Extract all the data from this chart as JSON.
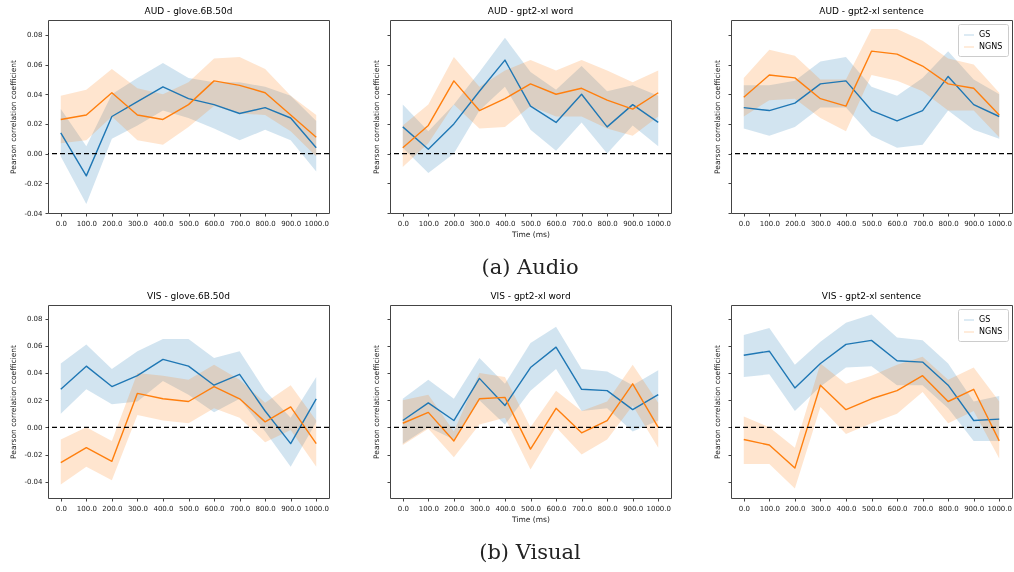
{
  "chart_data": [
    {
      "type": "line",
      "title": "AUD - glove.6B.50d",
      "ylabel": "Pearson correlation coefficient",
      "x": [
        0,
        100,
        200,
        300,
        400,
        500,
        600,
        700,
        800,
        900,
        1000
      ],
      "xlim": [
        -50,
        1050
      ],
      "xticks": [
        {
          "value": 0,
          "label": "0.0"
        },
        {
          "value": 100,
          "label": "100.0"
        },
        {
          "value": 200,
          "label": "200.0"
        },
        {
          "value": 300,
          "label": "300.0"
        },
        {
          "value": 400,
          "label": "400.0"
        },
        {
          "value": 500,
          "label": "500.0"
        },
        {
          "value": 600,
          "label": "600.0"
        },
        {
          "value": 700,
          "label": "700.0"
        },
        {
          "value": 800,
          "label": "800.0"
        },
        {
          "value": 900,
          "label": "900.0"
        },
        {
          "value": 1000,
          "label": "1000.0"
        }
      ],
      "ylim": [
        -0.04,
        0.09
      ],
      "yticks": [
        -0.04,
        -0.02,
        {
          "value": 0,
          "label": "0.00"
        },
        0.02,
        0.04,
        0.06,
        0.08
      ],
      "grid": false,
      "legend": false,
      "ref_lines": [
        {
          "axis": "y",
          "value": 0,
          "color": "#000000",
          "line_style": "dashed"
        }
      ],
      "series": [
        {
          "color": "#1f77b4",
          "values": [
            0.014,
            -0.015,
            0.025,
            0.035,
            0.045,
            0.037,
            0.033,
            0.027,
            0.031,
            0.024,
            0.004
          ],
          "lower": [
            -0.002,
            -0.034,
            0.01,
            0.019,
            0.029,
            0.024,
            0.017,
            0.009,
            0.016,
            0.009,
            -0.012
          ],
          "upper": [
            0.03,
            0.005,
            0.04,
            0.051,
            0.061,
            0.051,
            0.048,
            0.048,
            0.045,
            0.039,
            0.022
          ]
        },
        {
          "color": "#ff7f0e",
          "values": [
            0.023,
            0.026,
            0.041,
            0.026,
            0.023,
            0.033,
            0.049,
            0.046,
            0.041,
            0.026,
            0.011
          ],
          "lower": [
            0.007,
            0.009,
            0.025,
            0.009,
            0.006,
            0.018,
            0.032,
            0.027,
            0.026,
            0.015,
            -0.002
          ],
          "upper": [
            0.039,
            0.043,
            0.057,
            0.044,
            0.04,
            0.048,
            0.064,
            0.065,
            0.057,
            0.039,
            0.026
          ]
        }
      ]
    },
    {
      "type": "line",
      "title": "AUD - gpt2-xl word",
      "xlabel": "Time (ms)",
      "ylabel": "Pearson correlation coefficient",
      "annotations": [
        "(a) Audio"
      ],
      "tick_labels": "x",
      "x": [
        0,
        100,
        200,
        300,
        400,
        500,
        600,
        700,
        800,
        900,
        1000
      ],
      "xlim": [
        -50,
        1050
      ],
      "xticks": [
        {
          "value": 0,
          "label": "0.0"
        },
        {
          "value": 100,
          "label": "100.0"
        },
        {
          "value": 200,
          "label": "200.0"
        },
        {
          "value": 300,
          "label": "300.0"
        },
        {
          "value": 400,
          "label": "400.0"
        },
        {
          "value": 500,
          "label": "500.0"
        },
        {
          "value": 600,
          "label": "600.0"
        },
        {
          "value": 700,
          "label": "700.0"
        },
        {
          "value": 800,
          "label": "800.0"
        },
        {
          "value": 900,
          "label": "900.0"
        },
        {
          "value": 1000,
          "label": "1000.0"
        }
      ],
      "ylim": [
        -0.04,
        0.09
      ],
      "yticks": [
        -0.04,
        -0.02,
        0,
        0.02,
        0.04,
        0.06,
        0.08
      ],
      "grid": false,
      "legend": false,
      "ref_lines": [
        {
          "axis": "y",
          "value": 0,
          "color": "#000000",
          "line_style": "dashed"
        }
      ],
      "series": [
        {
          "color": "#1f77b4",
          "values": [
            0.018,
            0.003,
            0.02,
            0.042,
            0.063,
            0.032,
            0.021,
            0.04,
            0.018,
            0.033,
            0.021
          ],
          "lower": [
            0.004,
            -0.013,
            0.0,
            0.029,
            0.045,
            0.016,
            0.002,
            0.021,
            0.0,
            0.019,
            0.005
          ],
          "upper": [
            0.033,
            0.015,
            0.033,
            0.055,
            0.078,
            0.055,
            0.043,
            0.059,
            0.042,
            0.046,
            0.039
          ]
        },
        {
          "color": "#ff7f0e",
          "values": [
            0.004,
            0.019,
            0.049,
            0.029,
            0.037,
            0.047,
            0.04,
            0.044,
            0.036,
            0.03,
            0.041
          ],
          "lower": [
            -0.009,
            0.007,
            0.033,
            0.017,
            0.018,
            0.032,
            0.025,
            0.025,
            0.017,
            0.012,
            0.025
          ],
          "upper": [
            0.019,
            0.033,
            0.065,
            0.045,
            0.056,
            0.063,
            0.056,
            0.063,
            0.056,
            0.048,
            0.056
          ]
        }
      ]
    },
    {
      "type": "line",
      "title": "AUD - gpt2-xl sentence",
      "ylabel": "Pearson correlation coefficient",
      "tick_labels": "x",
      "x": [
        0,
        100,
        200,
        300,
        400,
        500,
        600,
        700,
        800,
        900,
        1000
      ],
      "xlim": [
        -50,
        1050
      ],
      "xticks": [
        {
          "value": 0,
          "label": "0.0"
        },
        {
          "value": 100,
          "label": "100.0"
        },
        {
          "value": 200,
          "label": "200.0"
        },
        {
          "value": 300,
          "label": "300.0"
        },
        {
          "value": 400,
          "label": "400.0"
        },
        {
          "value": 500,
          "label": "500.0"
        },
        {
          "value": 600,
          "label": "600.0"
        },
        {
          "value": 700,
          "label": "700.0"
        },
        {
          "value": 800,
          "label": "800.0"
        },
        {
          "value": 900,
          "label": "900.0"
        },
        {
          "value": 1000,
          "label": "1000.0"
        }
      ],
      "ylim": [
        -0.04,
        0.09
      ],
      "yticks": [
        -0.04,
        -0.02,
        0,
        0.02,
        0.04,
        0.06,
        0.08
      ],
      "grid": false,
      "legend": "top right",
      "ref_lines": [
        {
          "axis": "y",
          "value": 0,
          "color": "#000000",
          "line_style": "dashed"
        }
      ],
      "series": [
        {
          "name": "GS",
          "color": "#1f77b4",
          "values": [
            0.031,
            0.029,
            0.034,
            0.047,
            0.049,
            0.029,
            0.022,
            0.029,
            0.052,
            0.033,
            0.025
          ],
          "lower": [
            0.017,
            0.012,
            0.018,
            0.031,
            0.031,
            0.012,
            0.004,
            0.006,
            0.029,
            0.016,
            0.01
          ],
          "upper": [
            0.046,
            0.046,
            0.049,
            0.062,
            0.065,
            0.045,
            0.039,
            0.051,
            0.069,
            0.05,
            0.04
          ]
        },
        {
          "name": "NGNS",
          "color": "#ff7f0e",
          "values": [
            0.038,
            0.053,
            0.051,
            0.037,
            0.032,
            0.069,
            0.067,
            0.059,
            0.047,
            0.044,
            0.026
          ],
          "lower": [
            0.025,
            0.036,
            0.037,
            0.024,
            0.015,
            0.053,
            0.049,
            0.042,
            0.029,
            0.029,
            0.011
          ],
          "upper": [
            0.051,
            0.07,
            0.066,
            0.05,
            0.05,
            0.084,
            0.084,
            0.076,
            0.064,
            0.06,
            0.041
          ]
        }
      ]
    },
    {
      "type": "line",
      "title": "VIS - glove.6B.50d",
      "ylabel": "Pearson correlation coefficient",
      "x": [
        0,
        100,
        200,
        300,
        400,
        500,
        600,
        700,
        800,
        900,
        1000
      ],
      "xlim": [
        -50,
        1050
      ],
      "xticks": [
        {
          "value": 0,
          "label": "0.0"
        },
        {
          "value": 100,
          "label": "100.0"
        },
        {
          "value": 200,
          "label": "200.0"
        },
        {
          "value": 300,
          "label": "300.0"
        },
        {
          "value": 400,
          "label": "400.0"
        },
        {
          "value": 500,
          "label": "500.0"
        },
        {
          "value": 600,
          "label": "600.0"
        },
        {
          "value": 700,
          "label": "700.0"
        },
        {
          "value": 800,
          "label": "800.0"
        },
        {
          "value": 900,
          "label": "900.0"
        },
        {
          "value": 1000,
          "label": "1000.0"
        }
      ],
      "ylim": [
        -0.052,
        0.09
      ],
      "yticks": [
        -0.04,
        -0.02,
        {
          "value": 0,
          "label": "0.00"
        },
        0.02,
        0.04,
        0.06,
        0.08
      ],
      "grid": false,
      "legend": false,
      "ref_lines": [
        {
          "axis": "y",
          "value": 0,
          "color": "#000000",
          "line_style": "dashed"
        }
      ],
      "series": [
        {
          "color": "#1f77b4",
          "values": [
            0.028,
            0.045,
            0.03,
            0.038,
            0.05,
            0.045,
            0.031,
            0.039,
            0.012,
            -0.012,
            0.021
          ],
          "lower": [
            0.01,
            0.028,
            0.017,
            0.019,
            0.034,
            0.024,
            0.011,
            0.021,
            -0.003,
            -0.029,
            0.004
          ],
          "upper": [
            0.047,
            0.061,
            0.043,
            0.056,
            0.065,
            0.065,
            0.051,
            0.056,
            0.027,
            0.007,
            0.037
          ]
        },
        {
          "color": "#ff7f0e",
          "values": [
            -0.026,
            -0.015,
            -0.025,
            0.025,
            0.021,
            0.019,
            0.03,
            0.021,
            0.004,
            0.015,
            -0.012
          ],
          "lower": [
            -0.042,
            -0.029,
            -0.039,
            0.009,
            0.005,
            0.003,
            0.014,
            0.007,
            -0.011,
            -0.002,
            -0.029
          ],
          "upper": [
            -0.009,
            0.0,
            -0.01,
            0.04,
            0.038,
            0.035,
            0.046,
            0.035,
            0.018,
            0.031,
            0.005
          ]
        }
      ]
    },
    {
      "type": "line",
      "title": "VIS - gpt2-xl word",
      "xlabel": "Time (ms)",
      "ylabel": "Pearson correlation coefficient",
      "annotations": [
        "(b) Visual"
      ],
      "tick_labels": "x",
      "x": [
        0,
        100,
        200,
        300,
        400,
        500,
        600,
        700,
        800,
        900,
        1000
      ],
      "xlim": [
        -50,
        1050
      ],
      "xticks": [
        {
          "value": 0,
          "label": "0.0"
        },
        {
          "value": 100,
          "label": "100.0"
        },
        {
          "value": 200,
          "label": "200.0"
        },
        {
          "value": 300,
          "label": "300.0"
        },
        {
          "value": 400,
          "label": "400.0"
        },
        {
          "value": 500,
          "label": "500.0"
        },
        {
          "value": 600,
          "label": "600.0"
        },
        {
          "value": 700,
          "label": "700.0"
        },
        {
          "value": 800,
          "label": "800.0"
        },
        {
          "value": 900,
          "label": "900.0"
        },
        {
          "value": 1000,
          "label": "1000.0"
        }
      ],
      "ylim": [
        -0.052,
        0.09
      ],
      "yticks": [
        -0.04,
        -0.02,
        0,
        0.02,
        0.04,
        0.06,
        0.08
      ],
      "grid": false,
      "legend": false,
      "ref_lines": [
        {
          "axis": "y",
          "value": 0,
          "color": "#000000",
          "line_style": "dashed"
        }
      ],
      "series": [
        {
          "color": "#1f77b4",
          "values": [
            0.005,
            0.018,
            0.005,
            0.036,
            0.016,
            0.044,
            0.059,
            0.028,
            0.027,
            0.013,
            0.024
          ],
          "lower": [
            -0.012,
            0.0,
            -0.009,
            0.02,
            0.002,
            0.027,
            0.043,
            0.012,
            0.014,
            -0.003,
            0.005
          ],
          "upper": [
            0.021,
            0.035,
            0.021,
            0.051,
            0.032,
            0.062,
            0.074,
            0.043,
            0.041,
            0.031,
            0.042
          ]
        },
        {
          "color": "#ff7f0e",
          "values": [
            0.003,
            0.011,
            -0.01,
            0.021,
            0.022,
            -0.016,
            0.014,
            -0.004,
            0.005,
            0.032,
            0.0
          ],
          "lower": [
            -0.013,
            -0.001,
            -0.022,
            0.002,
            0.007,
            -0.031,
            0.0,
            -0.02,
            -0.009,
            0.016,
            -0.015
          ],
          "upper": [
            0.02,
            0.024,
            -0.003,
            0.04,
            0.037,
            0.0,
            0.027,
            0.012,
            0.019,
            0.046,
            0.018
          ]
        }
      ]
    },
    {
      "type": "line",
      "title": "VIS - gpt2-xl sentence",
      "ylabel": "Pearson correlation coefficient",
      "tick_labels": "x",
      "x": [
        0,
        100,
        200,
        300,
        400,
        500,
        600,
        700,
        800,
        900,
        1000
      ],
      "xlim": [
        -50,
        1050
      ],
      "xticks": [
        {
          "value": 0,
          "label": "0.0"
        },
        {
          "value": 100,
          "label": "100.0"
        },
        {
          "value": 200,
          "label": "200.0"
        },
        {
          "value": 300,
          "label": "300.0"
        },
        {
          "value": 400,
          "label": "400.0"
        },
        {
          "value": 500,
          "label": "500.0"
        },
        {
          "value": 600,
          "label": "600.0"
        },
        {
          "value": 700,
          "label": "700.0"
        },
        {
          "value": 800,
          "label": "800.0"
        },
        {
          "value": 900,
          "label": "900.0"
        },
        {
          "value": 1000,
          "label": "1000.0"
        }
      ],
      "ylim": [
        -0.052,
        0.09
      ],
      "yticks": [
        -0.04,
        -0.02,
        0,
        0.02,
        0.04,
        0.06,
        0.08
      ],
      "grid": false,
      "legend": "top right",
      "ref_lines": [
        {
          "axis": "y",
          "value": 0,
          "color": "#000000",
          "line_style": "dashed"
        }
      ],
      "series": [
        {
          "name": "GS",
          "color": "#1f77b4",
          "values": [
            0.053,
            0.056,
            0.029,
            0.047,
            0.061,
            0.064,
            0.049,
            0.048,
            0.031,
            0.005,
            0.006
          ],
          "lower": [
            0.037,
            0.039,
            0.012,
            0.03,
            0.044,
            0.045,
            0.031,
            0.031,
            0.014,
            -0.01,
            -0.01
          ],
          "upper": [
            0.068,
            0.073,
            0.046,
            0.063,
            0.077,
            0.083,
            0.066,
            0.064,
            0.047,
            0.019,
            0.023
          ]
        },
        {
          "name": "NGNS",
          "color": "#ff7f0e",
          "values": [
            -0.009,
            -0.013,
            -0.03,
            0.031,
            0.013,
            0.021,
            0.027,
            0.038,
            0.019,
            0.028,
            -0.01
          ],
          "lower": [
            -0.027,
            -0.027,
            -0.045,
            0.015,
            -0.005,
            0.003,
            0.01,
            0.026,
            0.003,
            0.012,
            -0.023
          ],
          "upper": [
            0.008,
            0.0,
            -0.015,
            0.047,
            0.032,
            0.038,
            0.046,
            0.052,
            0.035,
            0.044,
            0.019
          ]
        }
      ]
    }
  ]
}
